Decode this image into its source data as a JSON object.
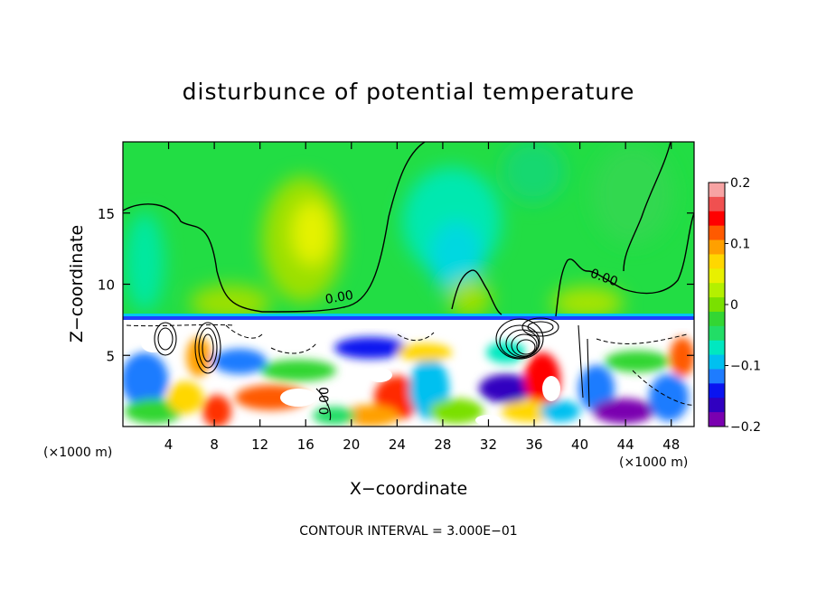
{
  "chart_data": {
    "type": "heatmap",
    "title": "disturbunce of potential temperature",
    "xlabel": "X−coordinate",
    "ylabel": "Z−coordinate",
    "x_unit_left": "(×1000 m)",
    "x_unit_right": "(×1000 m)",
    "footer": "CONTOUR INTERVAL = 3.000E−01",
    "xlim": [
      0,
      50
    ],
    "ylim": [
      0,
      20
    ],
    "x_ticks": [
      4,
      8,
      12,
      16,
      20,
      24,
      28,
      32,
      36,
      40,
      44,
      48
    ],
    "y_ticks": [
      5,
      10,
      15
    ],
    "contour_labels": [
      {
        "text": "0.00",
        "x": 19,
        "z": 8.8
      },
      {
        "text": "0.00",
        "x": 42,
        "z": 10.2
      },
      {
        "text": "0.00",
        "x": 18,
        "z": 1.8
      }
    ],
    "colorbar": {
      "range": [
        -0.2,
        0.2
      ],
      "tick_labels": [
        "0.2",
        "0.1",
        "0",
        "−0.1",
        "−0.2"
      ],
      "tick_values": [
        0.2,
        0.1,
        0,
        -0.1,
        -0.2
      ],
      "colors": [
        "#f7a3a3",
        "#f05050",
        "#ff0000",
        "#ff5a00",
        "#ffa000",
        "#ffd700",
        "#e8f000",
        "#b4f000",
        "#7ae000",
        "#33d633",
        "#22dd66",
        "#00e8c0",
        "#00c0f0",
        "#1e7cff",
        "#0a14f0",
        "#3000c0",
        "#7a00b0"
      ]
    }
  }
}
